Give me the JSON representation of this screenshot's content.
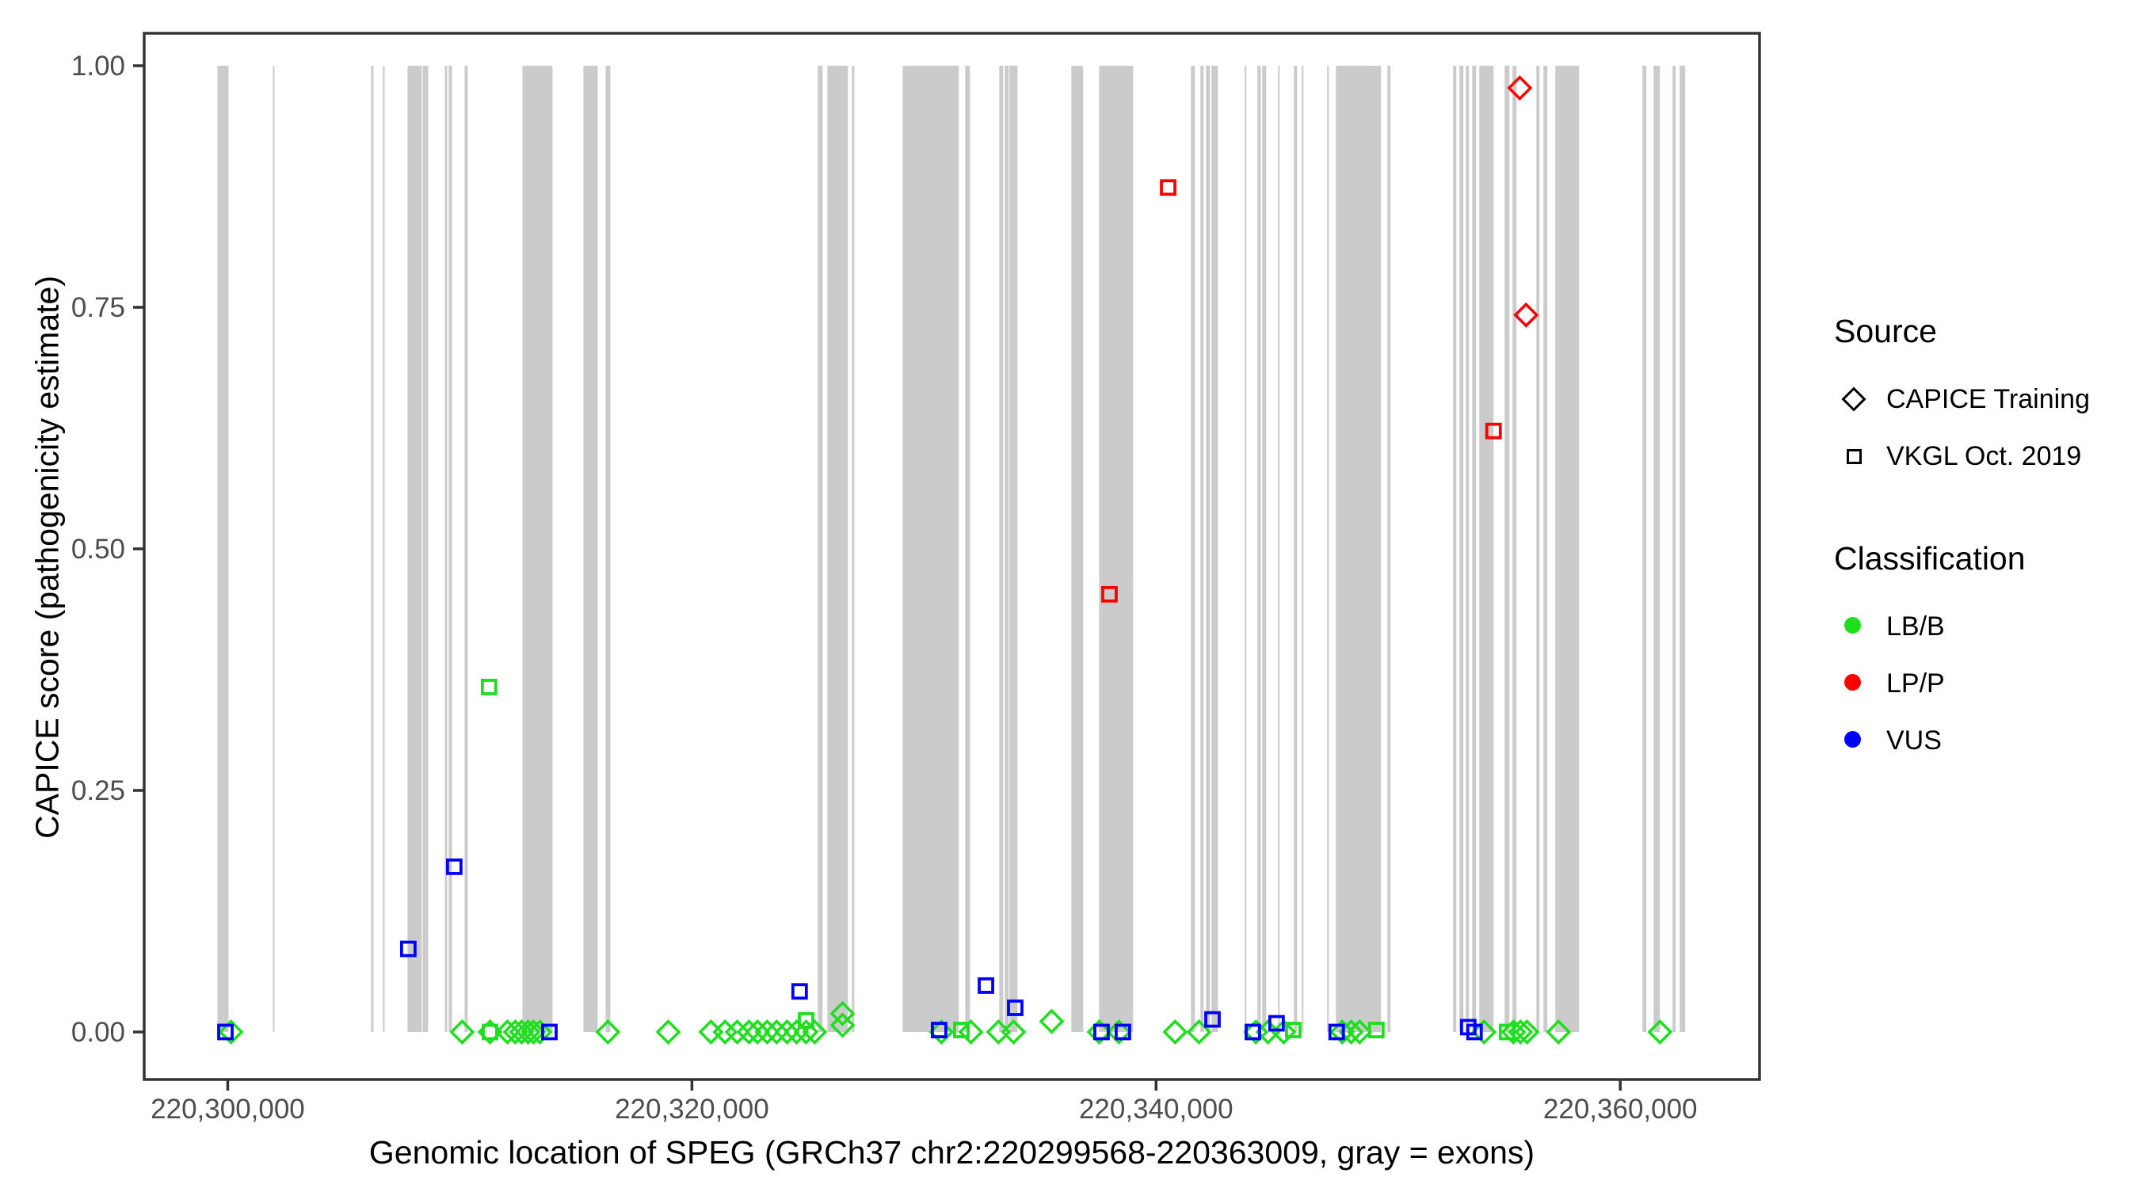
{
  "figure": {
    "x_axis_title": "Genomic location of SPEG (GRCh37 chr2:220299568-220363009, gray = exons)",
    "y_axis_title": "CAPICE score (pathogenicity estimate)"
  },
  "legend": {
    "source": {
      "title": "Source",
      "items": [
        {
          "label": "CAPICE Training",
          "marker": "diamond-outline"
        },
        {
          "label": "VKGL Oct. 2019",
          "marker": "square-outline"
        }
      ]
    },
    "classification": {
      "title": "Classification",
      "items": [
        {
          "label": "LB/B",
          "color": "#1ddf1d"
        },
        {
          "label": "LP/P",
          "color": "#ff0000"
        },
        {
          "label": "VUS",
          "color": "#0000ff"
        }
      ]
    }
  },
  "chart_data": {
    "type": "scatter",
    "title": "",
    "xlabel": "Genomic location of SPEG (GRCh37 chr2:220299568-220363009, gray = exons)",
    "ylabel": "CAPICE score (pathogenicity estimate)",
    "x_domain": [
      220296400,
      220366000
    ],
    "y_domain": [
      -0.05,
      1.05
    ],
    "x_ticks": [
      {
        "value": 220300000,
        "label": "220,300,000"
      },
      {
        "value": 220320000,
        "label": "220,320,000"
      },
      {
        "value": 220340000,
        "label": "220,340,000"
      },
      {
        "value": 220360000,
        "label": "220,360,000"
      }
    ],
    "y_ticks": [
      {
        "value": 1.0,
        "label": "1.00"
      },
      {
        "value": 0.75,
        "label": "0.75"
      },
      {
        "value": 0.5,
        "label": "0.50"
      },
      {
        "value": 0.25,
        "label": "0.25"
      },
      {
        "value": 0.0,
        "label": "0.00"
      }
    ],
    "grid": false,
    "legend_position": "right",
    "exon_color": "#cbcbcb",
    "class_colors": {
      "LB/B": "#1ddf1d",
      "LP/P": "#ff0000",
      "VUS": "#0000ff"
    },
    "exons": [
      [
        220299556,
        220300034
      ],
      [
        220301946,
        220302014
      ],
      [
        220306178,
        220306280
      ],
      [
        220306690,
        220306758
      ],
      [
        220307748,
        220308362
      ],
      [
        220308396,
        220308635
      ],
      [
        220309352,
        220309454
      ],
      [
        220309522,
        220309659
      ],
      [
        220310205,
        220310341
      ],
      [
        220312697,
        220313994
      ],
      [
        220315325,
        220315939
      ],
      [
        220316280,
        220316485
      ],
      [
        220325426,
        220325631
      ],
      [
        220325836,
        220326723
      ],
      [
        220326894,
        220326997
      ],
      [
        220329078,
        220331501
      ],
      [
        220331774,
        220331979
      ],
      [
        220333242,
        220333413
      ],
      [
        220333481,
        220333652
      ],
      [
        220333686,
        220334027
      ],
      [
        220336348,
        220336860
      ],
      [
        220337543,
        220339010
      ],
      [
        220341502,
        220341672
      ],
      [
        220341911,
        220342048
      ],
      [
        220342150,
        220342321
      ],
      [
        220342389,
        220342662
      ],
      [
        220343822,
        220343890
      ],
      [
        220344368,
        220344505
      ],
      [
        220344573,
        220344744
      ],
      [
        220345256,
        220345324
      ],
      [
        220345938,
        220346075
      ],
      [
        220346279,
        220346348
      ],
      [
        220347372,
        220347440
      ],
      [
        220347747,
        220349693
      ],
      [
        220349966,
        220350102
      ],
      [
        220352799,
        220352935
      ],
      [
        220353072,
        220353242
      ],
      [
        220353345,
        220353481
      ],
      [
        220353618,
        220353789
      ],
      [
        220353925,
        220354540
      ],
      [
        220355017,
        220355222
      ],
      [
        220355358,
        220355529
      ],
      [
        220356382,
        220356519
      ],
      [
        220356689,
        220356860
      ],
      [
        220357201,
        220358225
      ],
      [
        220360955,
        220361126
      ],
      [
        220361433,
        220361706
      ],
      [
        220362252,
        220362389
      ],
      [
        220362559,
        220362798
      ]
    ],
    "points": [
      {
        "pos": 220300140,
        "score": 0.0,
        "source": "CAPICE Training",
        "class": "LB/B"
      },
      {
        "pos": 220310100,
        "score": 0.0,
        "source": "CAPICE Training",
        "class": "LB/B"
      },
      {
        "pos": 220311300,
        "score": 0.0,
        "source": "CAPICE Training",
        "class": "LB/B"
      },
      {
        "pos": 220312050,
        "score": 0.0,
        "source": "CAPICE Training",
        "class": "LB/B"
      },
      {
        "pos": 220312390,
        "score": 0.0,
        "source": "CAPICE Training",
        "class": "LB/B"
      },
      {
        "pos": 220312660,
        "score": 0.0,
        "source": "CAPICE Training",
        "class": "LB/B"
      },
      {
        "pos": 220312940,
        "score": 0.0,
        "source": "CAPICE Training",
        "class": "LB/B"
      },
      {
        "pos": 220313170,
        "score": 0.0,
        "source": "CAPICE Training",
        "class": "LB/B"
      },
      {
        "pos": 220313450,
        "score": 0.0,
        "source": "CAPICE Training",
        "class": "LB/B"
      },
      {
        "pos": 220316380,
        "score": 0.0,
        "source": "CAPICE Training",
        "class": "LB/B"
      },
      {
        "pos": 220318980,
        "score": 0.0,
        "source": "CAPICE Training",
        "class": "LB/B"
      },
      {
        "pos": 220320820,
        "score": 0.0,
        "source": "CAPICE Training",
        "class": "LB/B"
      },
      {
        "pos": 220321430,
        "score": 0.0,
        "source": "CAPICE Training",
        "class": "LB/B"
      },
      {
        "pos": 220321950,
        "score": 0.0,
        "source": "CAPICE Training",
        "class": "LB/B"
      },
      {
        "pos": 220322460,
        "score": 0.0,
        "source": "CAPICE Training",
        "class": "LB/B"
      },
      {
        "pos": 220322830,
        "score": 0.0,
        "source": "CAPICE Training",
        "class": "LB/B"
      },
      {
        "pos": 220323240,
        "score": 0.0,
        "source": "CAPICE Training",
        "class": "LB/B"
      },
      {
        "pos": 220323650,
        "score": 0.0,
        "source": "CAPICE Training",
        "class": "LB/B"
      },
      {
        "pos": 220324100,
        "score": 0.0,
        "source": "CAPICE Training",
        "class": "LB/B"
      },
      {
        "pos": 220324510,
        "score": 0.0,
        "source": "CAPICE Training",
        "class": "LB/B"
      },
      {
        "pos": 220324920,
        "score": 0.0,
        "source": "CAPICE Training",
        "class": "LB/B"
      },
      {
        "pos": 220325290,
        "score": 0.0,
        "source": "CAPICE Training",
        "class": "LB/B"
      },
      {
        "pos": 220326490,
        "score": 0.007,
        "source": "CAPICE Training",
        "class": "LB/B"
      },
      {
        "pos": 220326490,
        "score": 0.019,
        "source": "CAPICE Training",
        "class": "LB/B"
      },
      {
        "pos": 220330750,
        "score": 0.0,
        "source": "CAPICE Training",
        "class": "LB/B"
      },
      {
        "pos": 220332020,
        "score": 0.0,
        "source": "CAPICE Training",
        "class": "LB/B"
      },
      {
        "pos": 220333210,
        "score": 0.0,
        "source": "CAPICE Training",
        "class": "LB/B"
      },
      {
        "pos": 220333860,
        "score": 0.0,
        "source": "CAPICE Training",
        "class": "LB/B"
      },
      {
        "pos": 220335500,
        "score": 0.011,
        "source": "CAPICE Training",
        "class": "LB/B"
      },
      {
        "pos": 220337550,
        "score": 0.0,
        "source": "CAPICE Training",
        "class": "LB/B"
      },
      {
        "pos": 220338400,
        "score": 0.0,
        "source": "CAPICE Training",
        "class": "LB/B"
      },
      {
        "pos": 220340820,
        "score": 0.0,
        "source": "CAPICE Training",
        "class": "LB/B"
      },
      {
        "pos": 220341850,
        "score": 0.0,
        "source": "CAPICE Training",
        "class": "LB/B"
      },
      {
        "pos": 220344300,
        "score": 0.0,
        "source": "CAPICE Training",
        "class": "LB/B"
      },
      {
        "pos": 220344820,
        "score": 0.0,
        "source": "CAPICE Training",
        "class": "LB/B"
      },
      {
        "pos": 220345500,
        "score": 0.0,
        "source": "CAPICE Training",
        "class": "LB/B"
      },
      {
        "pos": 220348020,
        "score": 0.0,
        "source": "CAPICE Training",
        "class": "LB/B"
      },
      {
        "pos": 220348400,
        "score": 0.0,
        "source": "CAPICE Training",
        "class": "LB/B"
      },
      {
        "pos": 220348770,
        "score": 0.0,
        "source": "CAPICE Training",
        "class": "LB/B"
      },
      {
        "pos": 220354130,
        "score": 0.0,
        "source": "CAPICE Training",
        "class": "LB/B"
      },
      {
        "pos": 220355400,
        "score": 0.0,
        "source": "CAPICE Training",
        "class": "LB/B"
      },
      {
        "pos": 220355700,
        "score": 0.0,
        "source": "CAPICE Training",
        "class": "LB/B"
      },
      {
        "pos": 220355980,
        "score": 0.0,
        "source": "CAPICE Training",
        "class": "LB/B"
      },
      {
        "pos": 220357340,
        "score": 0.0,
        "source": "CAPICE Training",
        "class": "LB/B"
      },
      {
        "pos": 220361710,
        "score": 0.0,
        "source": "CAPICE Training",
        "class": "LB/B"
      },
      {
        "pos": 220355670,
        "score": 0.977,
        "source": "CAPICE Training",
        "class": "LP/P"
      },
      {
        "pos": 220355940,
        "score": 0.742,
        "source": "CAPICE Training",
        "class": "LP/P"
      },
      {
        "pos": 220299900,
        "score": 0.0,
        "source": "VKGL Oct. 2019",
        "class": "VUS"
      },
      {
        "pos": 220307780,
        "score": 0.086,
        "source": "VKGL Oct. 2019",
        "class": "VUS"
      },
      {
        "pos": 220309760,
        "score": 0.171,
        "source": "VKGL Oct. 2019",
        "class": "VUS"
      },
      {
        "pos": 220311260,
        "score": 0.357,
        "source": "VKGL Oct. 2019",
        "class": "LB/B"
      },
      {
        "pos": 220311300,
        "score": 0.0,
        "source": "VKGL Oct. 2019",
        "class": "LB/B"
      },
      {
        "pos": 220313860,
        "score": 0.0,
        "source": "VKGL Oct. 2019",
        "class": "VUS"
      },
      {
        "pos": 220324640,
        "score": 0.042,
        "source": "VKGL Oct. 2019",
        "class": "VUS"
      },
      {
        "pos": 220324920,
        "score": 0.012,
        "source": "VKGL Oct. 2019",
        "class": "LB/B"
      },
      {
        "pos": 220330650,
        "score": 0.002,
        "source": "VKGL Oct. 2019",
        "class": "VUS"
      },
      {
        "pos": 220331610,
        "score": 0.002,
        "source": "VKGL Oct. 2019",
        "class": "LB/B"
      },
      {
        "pos": 220332670,
        "score": 0.048,
        "source": "VKGL Oct. 2019",
        "class": "VUS"
      },
      {
        "pos": 220333930,
        "score": 0.025,
        "source": "VKGL Oct. 2019",
        "class": "VUS"
      },
      {
        "pos": 220337650,
        "score": 0.0,
        "source": "VKGL Oct. 2019",
        "class": "VUS"
      },
      {
        "pos": 220337990,
        "score": 0.453,
        "source": "VKGL Oct. 2019",
        "class": "LP/P"
      },
      {
        "pos": 220338570,
        "score": 0.0,
        "source": "VKGL Oct. 2019",
        "class": "VUS"
      },
      {
        "pos": 220340520,
        "score": 0.874,
        "source": "VKGL Oct. 2019",
        "class": "LP/P"
      },
      {
        "pos": 220342430,
        "score": 0.013,
        "source": "VKGL Oct. 2019",
        "class": "VUS"
      },
      {
        "pos": 220344170,
        "score": 0.0,
        "source": "VKGL Oct. 2019",
        "class": "VUS"
      },
      {
        "pos": 220345190,
        "score": 0.009,
        "source": "VKGL Oct. 2019",
        "class": "VUS"
      },
      {
        "pos": 220345910,
        "score": 0.002,
        "source": "VKGL Oct. 2019",
        "class": "LB/B"
      },
      {
        "pos": 220347780,
        "score": 0.0,
        "source": "VKGL Oct. 2019",
        "class": "VUS"
      },
      {
        "pos": 220349490,
        "score": 0.002,
        "source": "VKGL Oct. 2019",
        "class": "LB/B"
      },
      {
        "pos": 220353450,
        "score": 0.005,
        "source": "VKGL Oct. 2019",
        "class": "VUS"
      },
      {
        "pos": 220353720,
        "score": 0.0,
        "source": "VKGL Oct. 2019",
        "class": "VUS"
      },
      {
        "pos": 220354540,
        "score": 0.622,
        "source": "VKGL Oct. 2019",
        "class": "LP/P"
      },
      {
        "pos": 220355120,
        "score": 0.0,
        "source": "VKGL Oct. 2019",
        "class": "LB/B"
      }
    ]
  }
}
